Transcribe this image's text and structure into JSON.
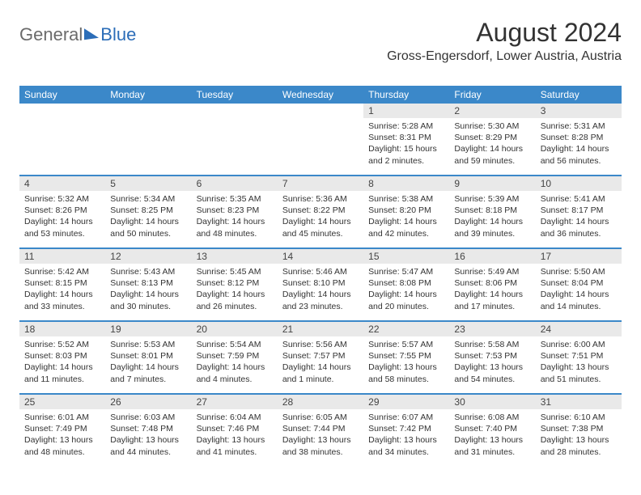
{
  "brand": {
    "general": "General",
    "blue": "Blue"
  },
  "header": {
    "title": "August 2024",
    "location": "Gross-Engersdorf, Lower Austria, Austria"
  },
  "colors": {
    "brand_blue": "#2b6db8",
    "header_blue": "#3b88c9",
    "daynum_bg": "#e9e9e9",
    "text": "#333333",
    "logo_gray": "#6b6b6b"
  },
  "dayNames": [
    "Sunday",
    "Monday",
    "Tuesday",
    "Wednesday",
    "Thursday",
    "Friday",
    "Saturday"
  ],
  "weeks": [
    [
      null,
      null,
      null,
      null,
      {
        "n": "1",
        "sr": "Sunrise: 5:28 AM",
        "ss": "Sunset: 8:31 PM",
        "dl": "Daylight: 15 hours and 2 minutes."
      },
      {
        "n": "2",
        "sr": "Sunrise: 5:30 AM",
        "ss": "Sunset: 8:29 PM",
        "dl": "Daylight: 14 hours and 59 minutes."
      },
      {
        "n": "3",
        "sr": "Sunrise: 5:31 AM",
        "ss": "Sunset: 8:28 PM",
        "dl": "Daylight: 14 hours and 56 minutes."
      }
    ],
    [
      {
        "n": "4",
        "sr": "Sunrise: 5:32 AM",
        "ss": "Sunset: 8:26 PM",
        "dl": "Daylight: 14 hours and 53 minutes."
      },
      {
        "n": "5",
        "sr": "Sunrise: 5:34 AM",
        "ss": "Sunset: 8:25 PM",
        "dl": "Daylight: 14 hours and 50 minutes."
      },
      {
        "n": "6",
        "sr": "Sunrise: 5:35 AM",
        "ss": "Sunset: 8:23 PM",
        "dl": "Daylight: 14 hours and 48 minutes."
      },
      {
        "n": "7",
        "sr": "Sunrise: 5:36 AM",
        "ss": "Sunset: 8:22 PM",
        "dl": "Daylight: 14 hours and 45 minutes."
      },
      {
        "n": "8",
        "sr": "Sunrise: 5:38 AM",
        "ss": "Sunset: 8:20 PM",
        "dl": "Daylight: 14 hours and 42 minutes."
      },
      {
        "n": "9",
        "sr": "Sunrise: 5:39 AM",
        "ss": "Sunset: 8:18 PM",
        "dl": "Daylight: 14 hours and 39 minutes."
      },
      {
        "n": "10",
        "sr": "Sunrise: 5:41 AM",
        "ss": "Sunset: 8:17 PM",
        "dl": "Daylight: 14 hours and 36 minutes."
      }
    ],
    [
      {
        "n": "11",
        "sr": "Sunrise: 5:42 AM",
        "ss": "Sunset: 8:15 PM",
        "dl": "Daylight: 14 hours and 33 minutes."
      },
      {
        "n": "12",
        "sr": "Sunrise: 5:43 AM",
        "ss": "Sunset: 8:13 PM",
        "dl": "Daylight: 14 hours and 30 minutes."
      },
      {
        "n": "13",
        "sr": "Sunrise: 5:45 AM",
        "ss": "Sunset: 8:12 PM",
        "dl": "Daylight: 14 hours and 26 minutes."
      },
      {
        "n": "14",
        "sr": "Sunrise: 5:46 AM",
        "ss": "Sunset: 8:10 PM",
        "dl": "Daylight: 14 hours and 23 minutes."
      },
      {
        "n": "15",
        "sr": "Sunrise: 5:47 AM",
        "ss": "Sunset: 8:08 PM",
        "dl": "Daylight: 14 hours and 20 minutes."
      },
      {
        "n": "16",
        "sr": "Sunrise: 5:49 AM",
        "ss": "Sunset: 8:06 PM",
        "dl": "Daylight: 14 hours and 17 minutes."
      },
      {
        "n": "17",
        "sr": "Sunrise: 5:50 AM",
        "ss": "Sunset: 8:04 PM",
        "dl": "Daylight: 14 hours and 14 minutes."
      }
    ],
    [
      {
        "n": "18",
        "sr": "Sunrise: 5:52 AM",
        "ss": "Sunset: 8:03 PM",
        "dl": "Daylight: 14 hours and 11 minutes."
      },
      {
        "n": "19",
        "sr": "Sunrise: 5:53 AM",
        "ss": "Sunset: 8:01 PM",
        "dl": "Daylight: 14 hours and 7 minutes."
      },
      {
        "n": "20",
        "sr": "Sunrise: 5:54 AM",
        "ss": "Sunset: 7:59 PM",
        "dl": "Daylight: 14 hours and 4 minutes."
      },
      {
        "n": "21",
        "sr": "Sunrise: 5:56 AM",
        "ss": "Sunset: 7:57 PM",
        "dl": "Daylight: 14 hours and 1 minute."
      },
      {
        "n": "22",
        "sr": "Sunrise: 5:57 AM",
        "ss": "Sunset: 7:55 PM",
        "dl": "Daylight: 13 hours and 58 minutes."
      },
      {
        "n": "23",
        "sr": "Sunrise: 5:58 AM",
        "ss": "Sunset: 7:53 PM",
        "dl": "Daylight: 13 hours and 54 minutes."
      },
      {
        "n": "24",
        "sr": "Sunrise: 6:00 AM",
        "ss": "Sunset: 7:51 PM",
        "dl": "Daylight: 13 hours and 51 minutes."
      }
    ],
    [
      {
        "n": "25",
        "sr": "Sunrise: 6:01 AM",
        "ss": "Sunset: 7:49 PM",
        "dl": "Daylight: 13 hours and 48 minutes."
      },
      {
        "n": "26",
        "sr": "Sunrise: 6:03 AM",
        "ss": "Sunset: 7:48 PM",
        "dl": "Daylight: 13 hours and 44 minutes."
      },
      {
        "n": "27",
        "sr": "Sunrise: 6:04 AM",
        "ss": "Sunset: 7:46 PM",
        "dl": "Daylight: 13 hours and 41 minutes."
      },
      {
        "n": "28",
        "sr": "Sunrise: 6:05 AM",
        "ss": "Sunset: 7:44 PM",
        "dl": "Daylight: 13 hours and 38 minutes."
      },
      {
        "n": "29",
        "sr": "Sunrise: 6:07 AM",
        "ss": "Sunset: 7:42 PM",
        "dl": "Daylight: 13 hours and 34 minutes."
      },
      {
        "n": "30",
        "sr": "Sunrise: 6:08 AM",
        "ss": "Sunset: 7:40 PM",
        "dl": "Daylight: 13 hours and 31 minutes."
      },
      {
        "n": "31",
        "sr": "Sunrise: 6:10 AM",
        "ss": "Sunset: 7:38 PM",
        "dl": "Daylight: 13 hours and 28 minutes."
      }
    ]
  ]
}
